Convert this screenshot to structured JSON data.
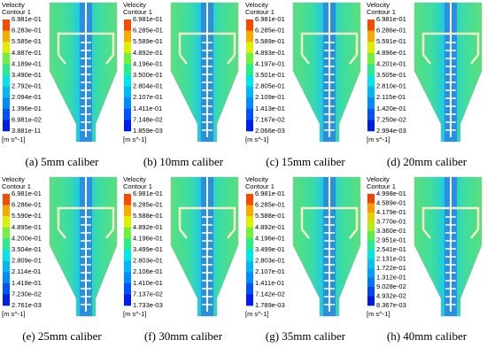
{
  "panels": [
    {
      "legend_title": [
        "Velocity",
        "Contour 1"
      ],
      "unit": "[m s^-1]",
      "caption": "(a) 5mm caliber",
      "levels": [
        "6.981e-01",
        "6.283e-01",
        "5.585e-01",
        "4.887e-01",
        "4.189e-01",
        "3.490e-01",
        "2.792e-01",
        "2.094e-01",
        "1.396e-01",
        "6.981e-02",
        "3.881e-11"
      ]
    },
    {
      "legend_title": [
        "Velocity",
        "Contour 1"
      ],
      "unit": "[m s^-1]",
      "caption": "(b) 10mm caliber",
      "levels": [
        "6.981e-01",
        "6.285e-01",
        "5.589e-01",
        "4.892e-01",
        "4.196e-01",
        "3.500e-01",
        "2.804e-01",
        "2.107e-01",
        "1.411e-01",
        "7.148e-02",
        "1.859e-03"
      ]
    },
    {
      "legend_title": [
        "Velocity",
        "Contour 1"
      ],
      "unit": "[m s^-1]",
      "caption": "(c) 15mm caliber",
      "levels": [
        "6.981e-01",
        "6.285e-01",
        "5.589e-01",
        "4.893e-01",
        "4.197e-01",
        "3.501e-01",
        "2.805e-01",
        "2.109e-01",
        "1.413e-01",
        "7.167e-02",
        "2.066e-03"
      ]
    },
    {
      "legend_title": [
        "Velocity",
        "Contour 1"
      ],
      "unit": "[m s^-1]",
      "caption": "(d) 20mm caliber",
      "levels": [
        "6.981e-01",
        "6.286e-01",
        "5.591e-01",
        "4.896e-01",
        "4.201e-01",
        "3.505e-01",
        "2.810e-01",
        "2.115e-01",
        "1.420e-01",
        "7.250e-02",
        "2.994e-03"
      ]
    },
    {
      "legend_title": [
        "Velocity",
        "Contour 1"
      ],
      "unit": "[m s^-1]",
      "caption": "(e) 25mm caliber",
      "levels": [
        "6.981e-01",
        "6.286e-01",
        "5.590e-01",
        "4.895e-01",
        "4.200e-01",
        "3.504e-01",
        "2.809e-01",
        "2.114e-01",
        "1.418e-01",
        "7.230e-02",
        "2.761e-03"
      ]
    },
    {
      "legend_title": [
        "Velocity",
        "Contour 1"
      ],
      "unit": "[m s^-1]",
      "caption": "(f) 30mm caliber",
      "levels": [
        "6.981e-01",
        "6.285e-01",
        "5.588e-01",
        "4.892e-01",
        "4.196e-01",
        "3.499e-01",
        "2.803e-01",
        "2.106e-01",
        "1.410e-01",
        "7.137e-02",
        "1.733e-03"
      ]
    },
    {
      "legend_title": [
        "Velocity",
        "Contour 1"
      ],
      "unit": "[m s^-1]",
      "caption": "(g) 35mm caliber",
      "levels": [
        "6.981e-01",
        "6.285e-01",
        "5.588e-01",
        "4.892e-01",
        "4.196e-01",
        "3.499e-01",
        "2.803e-01",
        "2.107e-01",
        "1.411e-01",
        "7.142e-02",
        "1.789e-03"
      ]
    },
    {
      "legend_title": [
        "Velocity",
        "Contour 1"
      ],
      "unit": "[m s^-1]",
      "caption": "(h) 40mm caliber",
      "levels": [
        "4.998e-01",
        "4.589e-01",
        "4.179e-01",
        "3.770e-01",
        "3.360e-01",
        "2.951e-01",
        "2.541e-01",
        "2.131e-01",
        "1.722e-01",
        "1.312e-01",
        "9.028e-02",
        "4.932e-02",
        "8.367e-03"
      ]
    }
  ]
}
